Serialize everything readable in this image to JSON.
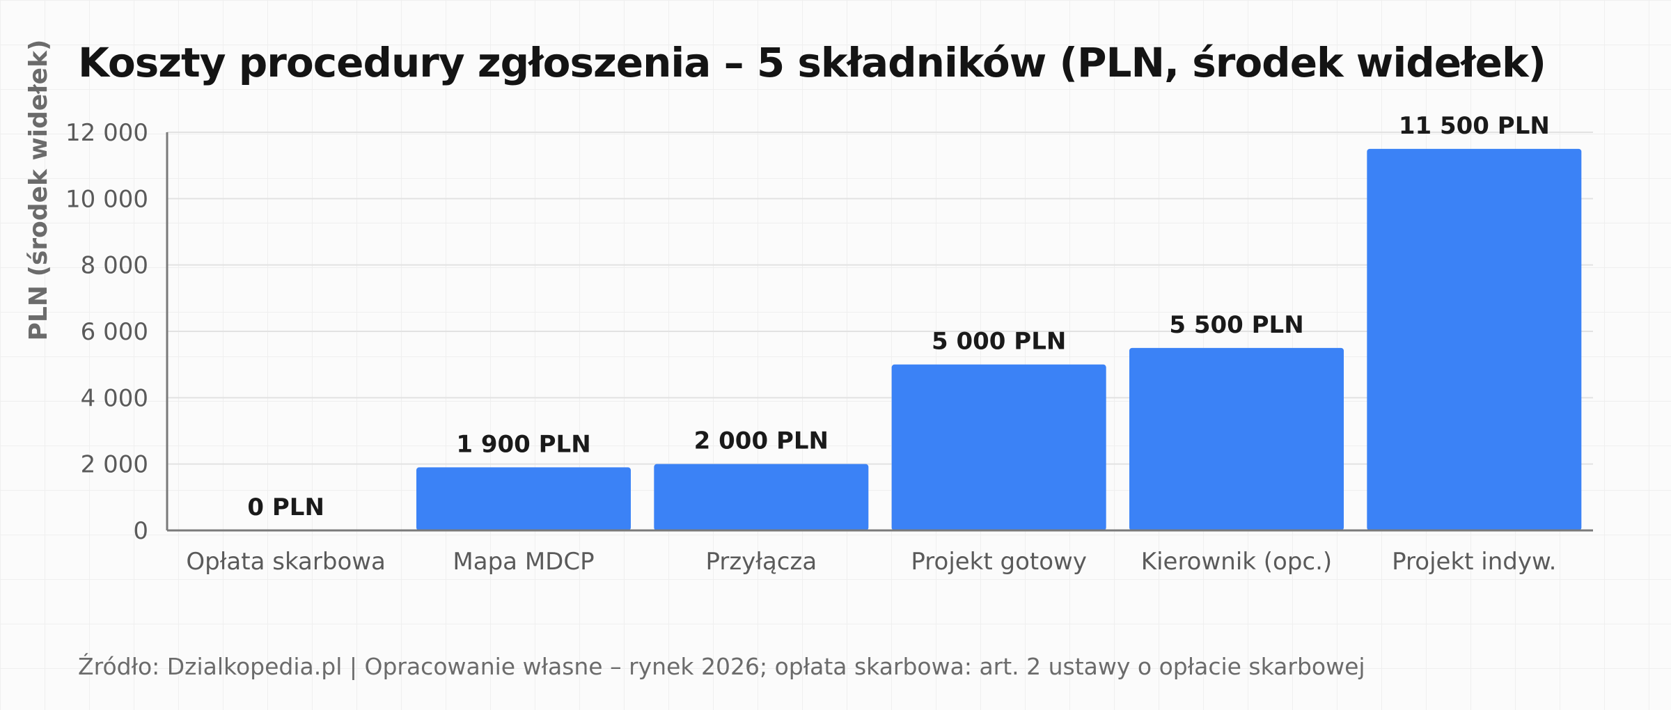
{
  "colors": {
    "bar": "#3b82f6",
    "axis": "#7a7a7a",
    "grid": "#e2e2e2",
    "title": "#141414",
    "tick_label": "#5a5a5a",
    "data_label": "#1a1a1a",
    "source": "#6b6b6b"
  },
  "chart_data": {
    "type": "bar",
    "title": "Koszty procedury zgłoszenia – 5 składników (PLN, środek widełek)",
    "xlabel": "",
    "ylabel": "PLN (środek widełek)",
    "categories": [
      "Opłata skarbowa",
      "Mapa MDCP",
      "Przyłącza",
      "Projekt gotowy",
      "Kierownik (opc.)",
      "Projekt indyw."
    ],
    "values": [
      0,
      1900,
      2000,
      5000,
      5500,
      11500
    ],
    "data_labels": [
      "0 PLN",
      "1 900 PLN",
      "2 000 PLN",
      "5 000 PLN",
      "5 500 PLN",
      "11 500 PLN"
    ],
    "ylim": [
      0,
      12000
    ],
    "yticks": [
      0,
      2000,
      4000,
      6000,
      8000,
      10000,
      12000
    ],
    "ytick_labels": [
      "0",
      "2 000",
      "4 000",
      "6 000",
      "8 000",
      "10 000",
      "12 000"
    ],
    "grid": true,
    "legend": "none"
  },
  "source": {
    "text": "Źródło: Dzialkopedia.pl | Opracowanie własne – rynek 2026; opłata skarbowa: art. 2 ustawy o opłacie skarbowej"
  }
}
